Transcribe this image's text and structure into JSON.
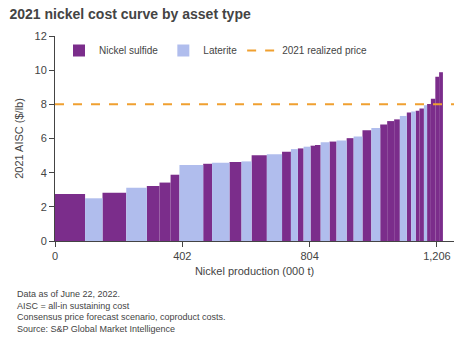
{
  "chart_data": {
    "type": "bar",
    "title": "2021 nickel cost curve by asset type",
    "xlabel": "Nickel production (000 t)",
    "ylabel": "2021 AISC ($/lb)",
    "footnote": "Data as of June 22, 2022.\nAISC = all-in sustaining cost\nConsensus price forecast scenario, coproduct costs.\nSource: S&P Global Market Intelligence",
    "series": [
      {
        "name": "Nickel sulfide",
        "color": "#7B2D8B",
        "x": [
          0,
          150,
          290,
          330,
          365,
          468,
          551,
          621,
          717,
          767,
          807,
          821,
          867,
          921,
          971,
          1027,
          1049,
          1071,
          1111,
          1139,
          1151,
          1175,
          1187,
          1201,
          1213
        ],
        "widths": [
          95,
          75,
          40,
          35,
          28,
          28,
          38,
          48,
          28,
          18,
          14,
          18,
          22,
          22,
          28,
          22,
          22,
          18,
          14,
          12,
          14,
          12,
          14,
          12,
          12
        ],
        "values": [
          2.75,
          2.82,
          3.22,
          3.42,
          3.88,
          4.52,
          4.62,
          5.02,
          5.22,
          5.42,
          5.58,
          5.62,
          5.82,
          6.02,
          6.48,
          6.82,
          7.02,
          7.12,
          7.52,
          7.62,
          7.75,
          8.02,
          8.32,
          9.62,
          9.88
        ]
      },
      {
        "name": "Laterite",
        "color": "#B0BDED",
        "x": [
          95,
          225,
          393,
          496,
          589,
          669,
          745,
          785,
          839,
          889,
          943,
          999,
          1089,
          1125,
          1165
        ],
        "widths": [
          55,
          65,
          75,
          55,
          32,
          48,
          22,
          22,
          28,
          32,
          28,
          28,
          22,
          14,
          10
        ],
        "values": [
          2.5,
          3.12,
          4.45,
          4.58,
          4.66,
          5.08,
          5.38,
          5.52,
          5.78,
          5.88,
          6.12,
          6.62,
          7.32,
          7.58,
          7.95
        ]
      },
      {
        "name": "2021 realized price",
        "type": "line",
        "color": "#F0A030",
        "line_style": "dashed",
        "values": [
          8.0
        ]
      }
    ],
    "xlim": [
      0,
      1260
    ],
    "xticks": [
      0,
      402,
      804,
      {
        "value": 1206,
        "label": "1,206"
      }
    ],
    "ylim": [
      0,
      12
    ],
    "yticks": [
      0,
      2,
      4,
      6,
      8,
      10,
      12
    ],
    "grid": false,
    "legend": "upper left"
  }
}
